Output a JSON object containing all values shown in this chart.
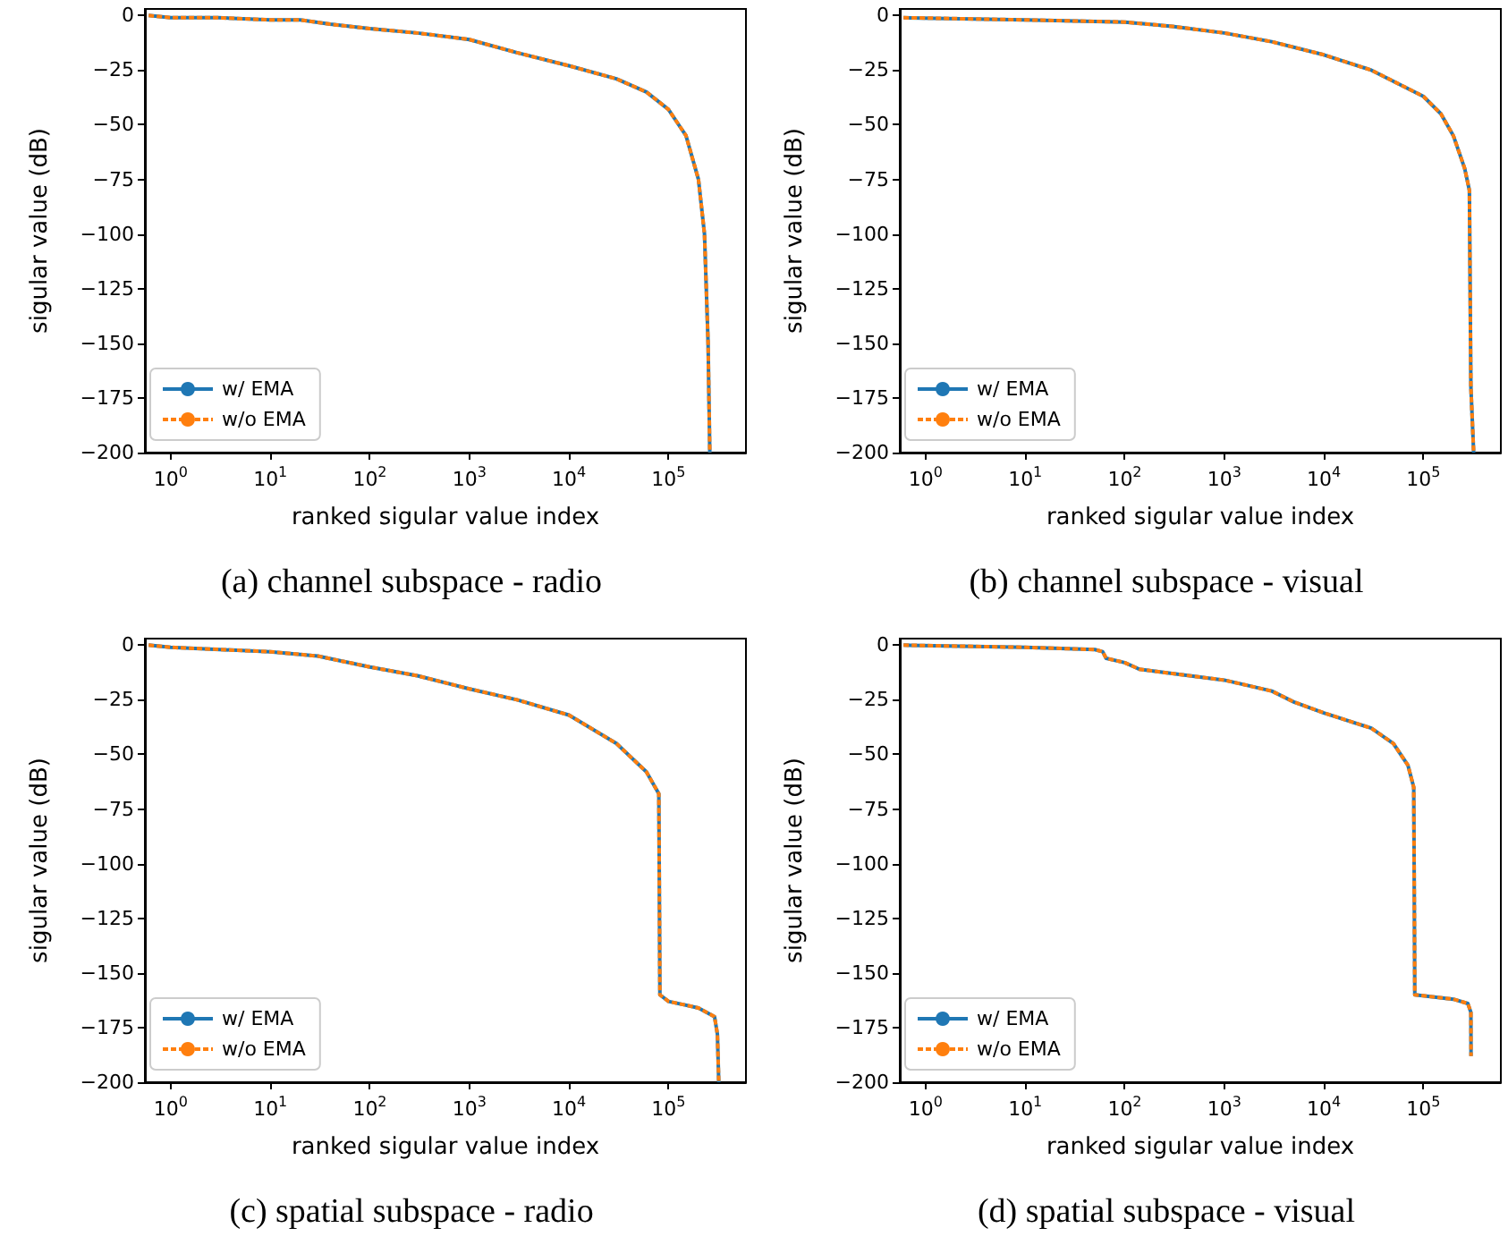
{
  "chart_data": [
    {
      "type": "line",
      "title": "(a) channel subspace - radio",
      "xlabel": "ranked sigular value index",
      "ylabel": "sigular value (dB)",
      "log": "x",
      "xlim": [
        0.55,
        600000
      ],
      "ylim": [
        -200,
        3
      ],
      "xticks": [
        {
          "value": 1,
          "label": "10$^{0}$"
        },
        {
          "value": 10,
          "label": "10$^{1}$"
        },
        {
          "value": 100,
          "label": "10$^{2}$"
        },
        {
          "value": 1000,
          "label": "10$^{3}$"
        },
        {
          "value": 10000,
          "label": "10$^{4}$"
        },
        {
          "value": 100000,
          "label": "10$^{5}$"
        }
      ],
      "yticks": [
        0,
        -25,
        -50,
        -75,
        -100,
        -125,
        -150,
        -175,
        -200
      ],
      "legend": "bottom left",
      "grid": false,
      "series": [
        {
          "name": "w/ EMA",
          "color": "#1f77b4",
          "line_style": "solid",
          "x": [
            0.6,
            1,
            3,
            10,
            20,
            40,
            100,
            300,
            1000,
            3000,
            10000,
            30000,
            60000,
            100000,
            150000,
            200000,
            230000,
            250000,
            260000
          ],
          "values": [
            0,
            -1,
            -1,
            -2,
            -2,
            -4,
            -6,
            -8,
            -11,
            -17,
            -23,
            -29,
            -35,
            -43,
            -55,
            -75,
            -100,
            -150,
            -200
          ]
        },
        {
          "name": "w/o EMA",
          "color": "#ff7f0e",
          "line_style": "dashed",
          "x": [
            0.6,
            1,
            3,
            10,
            20,
            40,
            100,
            300,
            1000,
            3000,
            10000,
            30000,
            60000,
            100000,
            150000,
            200000,
            230000,
            250000,
            260000
          ],
          "values": [
            0,
            -1,
            -1,
            -2,
            -2,
            -4,
            -6,
            -8,
            -11,
            -17,
            -23,
            -29,
            -35,
            -43,
            -55,
            -75,
            -100,
            -150,
            -200
          ]
        }
      ]
    },
    {
      "type": "line",
      "title": "(b) channel subspace - visual",
      "xlabel": "ranked sigular value index",
      "ylabel": "sigular value (dB)",
      "log": "x",
      "xlim": [
        0.55,
        600000
      ],
      "ylim": [
        -200,
        3
      ],
      "xticks": [
        {
          "value": 1,
          "label": "10$^{0}$"
        },
        {
          "value": 10,
          "label": "10$^{1}$"
        },
        {
          "value": 100,
          "label": "10$^{2}$"
        },
        {
          "value": 1000,
          "label": "10$^{3}$"
        },
        {
          "value": 10000,
          "label": "10$^{4}$"
        },
        {
          "value": 100000,
          "label": "10$^{5}$"
        }
      ],
      "yticks": [
        0,
        -25,
        -50,
        -75,
        -100,
        -125,
        -150,
        -175,
        -200
      ],
      "legend": "bottom left",
      "grid": false,
      "series": [
        {
          "name": "w/ EMA",
          "color": "#1f77b4",
          "line_style": "solid",
          "x": [
            0.6,
            10,
            100,
            300,
            1000,
            3000,
            10000,
            30000,
            100000,
            150000,
            200000,
            260000,
            290000,
            300000,
            320000
          ],
          "values": [
            -1,
            -2,
            -3,
            -5,
            -8,
            -12,
            -18,
            -25,
            -37,
            -45,
            -55,
            -70,
            -80,
            -170,
            -200
          ]
        },
        {
          "name": "w/o EMA",
          "color": "#ff7f0e",
          "line_style": "dashed",
          "x": [
            0.6,
            10,
            100,
            300,
            1000,
            3000,
            10000,
            30000,
            100000,
            150000,
            200000,
            260000,
            290000,
            300000,
            320000
          ],
          "values": [
            -1,
            -2,
            -3,
            -5,
            -8,
            -12,
            -18,
            -25,
            -37,
            -45,
            -55,
            -70,
            -80,
            -170,
            -200
          ]
        }
      ]
    },
    {
      "type": "line",
      "title": "(c) spatial subspace - radio",
      "xlabel": "ranked sigular value index",
      "ylabel": "sigular value (dB)",
      "log": "x",
      "xlim": [
        0.55,
        600000
      ],
      "ylim": [
        -200,
        3
      ],
      "xticks": [
        {
          "value": 1,
          "label": "10$^{0}$"
        },
        {
          "value": 10,
          "label": "10$^{1}$"
        },
        {
          "value": 100,
          "label": "10$^{2}$"
        },
        {
          "value": 1000,
          "label": "10$^{3}$"
        },
        {
          "value": 10000,
          "label": "10$^{4}$"
        },
        {
          "value": 100000,
          "label": "10$^{5}$"
        }
      ],
      "yticks": [
        0,
        -25,
        -50,
        -75,
        -100,
        -125,
        -150,
        -175,
        -200
      ],
      "legend": "bottom left",
      "grid": false,
      "series": [
        {
          "name": "w/ EMA",
          "color": "#1f77b4",
          "line_style": "solid",
          "x": [
            0.6,
            1,
            10,
            30,
            100,
            300,
            1000,
            3000,
            10000,
            30000,
            60000,
            80000,
            82000,
            100000,
            200000,
            290000,
            310000,
            320000
          ],
          "values": [
            0,
            -1,
            -3,
            -5,
            -10,
            -14,
            -20,
            -25,
            -32,
            -45,
            -58,
            -68,
            -160,
            -163,
            -166,
            -170,
            -178,
            -200
          ]
        },
        {
          "name": "w/o EMA",
          "color": "#ff7f0e",
          "line_style": "dashed",
          "x": [
            0.6,
            1,
            10,
            30,
            100,
            300,
            1000,
            3000,
            10000,
            30000,
            60000,
            80000,
            82000,
            100000,
            200000,
            290000,
            310000,
            320000
          ],
          "values": [
            0,
            -1,
            -3,
            -5,
            -10,
            -14,
            -20,
            -25,
            -32,
            -45,
            -58,
            -68,
            -160,
            -163,
            -166,
            -170,
            -178,
            -200
          ]
        }
      ]
    },
    {
      "type": "line",
      "title": "(d) spatial subspace - visual",
      "xlabel": "ranked sigular value index",
      "ylabel": "sigular value (dB)",
      "log": "x",
      "xlim": [
        0.55,
        600000
      ],
      "ylim": [
        -200,
        3
      ],
      "xticks": [
        {
          "value": 1,
          "label": "10$^{0}$"
        },
        {
          "value": 10,
          "label": "10$^{1}$"
        },
        {
          "value": 100,
          "label": "10$^{2}$"
        },
        {
          "value": 1000,
          "label": "10$^{3}$"
        },
        {
          "value": 10000,
          "label": "10$^{4}$"
        },
        {
          "value": 100000,
          "label": "10$^{5}$"
        }
      ],
      "yticks": [
        0,
        -25,
        -50,
        -75,
        -100,
        -125,
        -150,
        -175,
        -200
      ],
      "legend": "bottom left",
      "grid": false,
      "series": [
        {
          "name": "w/ EMA",
          "color": "#1f77b4",
          "line_style": "solid",
          "x": [
            0.6,
            10,
            50,
            60,
            65,
            100,
            140,
            300,
            1000,
            3000,
            5000,
            10000,
            30000,
            50000,
            70000,
            80000,
            82000,
            200000,
            280000,
            300000,
            301000
          ],
          "values": [
            0,
            -1,
            -2,
            -3,
            -6,
            -8,
            -11,
            -13,
            -16,
            -21,
            -26,
            -31,
            -38,
            -45,
            -55,
            -65,
            -160,
            -162,
            -164,
            -168,
            -188
          ]
        },
        {
          "name": "w/o EMA",
          "color": "#ff7f0e",
          "line_style": "dashed",
          "x": [
            0.6,
            10,
            50,
            60,
            65,
            100,
            140,
            300,
            1000,
            3000,
            5000,
            10000,
            30000,
            50000,
            70000,
            80000,
            82000,
            200000,
            280000,
            300000,
            301000
          ],
          "values": [
            0,
            -1,
            -2,
            -3,
            -6,
            -8,
            -11,
            -13,
            -16,
            -21,
            -26,
            -31,
            -38,
            -45,
            -55,
            -65,
            -160,
            -162,
            -164,
            -168,
            -188
          ]
        }
      ]
    }
  ]
}
